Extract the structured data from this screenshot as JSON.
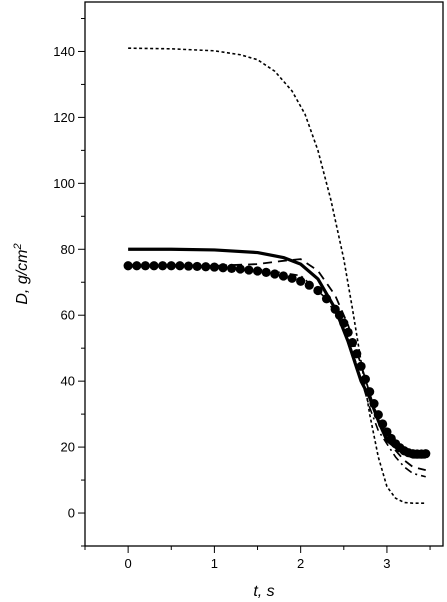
{
  "chart_data": {
    "type": "line",
    "title": "",
    "xlabel": "t, s",
    "ylabel_parts": {
      "main": "D, g/cm",
      "sup": "2"
    },
    "xlim": [
      -0.5,
      3.65
    ],
    "ylim": [
      -10,
      155
    ],
    "x_major_ticks": [
      0,
      1,
      2,
      3
    ],
    "y_major_ticks": [
      0,
      20,
      40,
      60,
      80,
      100,
      120,
      140
    ],
    "x_minor_step": 0.5,
    "y_minor_step": 10,
    "grid": false,
    "legend": "none",
    "series": [
      {
        "style": "dotted-thin",
        "color": "#000000",
        "x": [
          0,
          0.5,
          1.0,
          1.3,
          1.5,
          1.7,
          1.9,
          2.05,
          2.2,
          2.35,
          2.5,
          2.6,
          2.7,
          2.8,
          2.9,
          3.0,
          3.1,
          3.2,
          3.3,
          3.45
        ],
        "y": [
          141,
          140.8,
          140.2,
          139,
          137.5,
          134,
          128,
          121,
          110,
          95,
          77,
          62,
          46,
          30,
          17,
          8,
          4.5,
          3.2,
          3,
          3
        ]
      },
      {
        "style": "solid-thick",
        "color": "#000000",
        "x": [
          0,
          0.5,
          1.0,
          1.5,
          1.8,
          2.0,
          2.2,
          2.4,
          2.55,
          2.65,
          2.7,
          2.8,
          2.9,
          3.0,
          3.1,
          3.2,
          3.3,
          3.45
        ],
        "y": [
          80,
          80,
          79.8,
          79,
          77.5,
          75.5,
          71,
          62,
          52,
          44,
          40,
          35,
          28,
          22,
          20,
          18,
          17,
          17
        ]
      },
      {
        "style": "dashed",
        "color": "#000000",
        "x": [
          0,
          0.5,
          1.0,
          1.5,
          1.8,
          2.0,
          2.2,
          2.4,
          2.55,
          2.7,
          2.85,
          3.0,
          3.1,
          3.2,
          3.3,
          3.45
        ],
        "y": [
          75,
          75,
          75,
          75.5,
          76.5,
          77,
          73.5,
          66,
          57,
          45,
          32,
          23,
          19,
          16,
          14,
          13
        ]
      },
      {
        "style": "dash-dot",
        "color": "#000000",
        "x": [
          0,
          0.5,
          1.0,
          1.5,
          2.0,
          2.3,
          2.5,
          2.65,
          2.8,
          2.9,
          3.0,
          3.1,
          3.2,
          3.3,
          3.45
        ],
        "y": [
          75,
          75,
          74.5,
          74,
          72,
          65,
          56,
          45,
          32,
          25,
          21,
          17,
          14,
          12,
          11
        ]
      },
      {
        "style": "markers",
        "color": "#000000",
        "x": [
          0.0,
          0.1,
          0.2,
          0.3,
          0.4,
          0.5,
          0.6,
          0.7,
          0.8,
          0.9,
          1.0,
          1.1,
          1.2,
          1.3,
          1.4,
          1.5,
          1.6,
          1.7,
          1.8,
          1.9,
          2.0,
          2.1,
          2.2,
          2.3,
          2.4,
          2.45,
          2.5,
          2.55,
          2.6,
          2.65,
          2.7,
          2.75,
          2.8,
          2.85,
          2.9,
          2.95,
          3.0,
          3.05,
          3.1,
          3.15,
          3.2,
          3.25,
          3.3,
          3.35,
          3.4,
          3.45
        ],
        "y": [
          75,
          75,
          75,
          75,
          75,
          75,
          75,
          74.9,
          74.8,
          74.7,
          74.6,
          74.4,
          74.2,
          74,
          73.7,
          73.4,
          73,
          72.5,
          71.9,
          71.2,
          70.3,
          69.1,
          67.5,
          65,
          61.8,
          60,
          57.6,
          54.8,
          51.7,
          48.3,
          44.5,
          40.6,
          36.8,
          33.2,
          29.8,
          27,
          24.6,
          22.6,
          21,
          19.8,
          18.9,
          18.3,
          18,
          17.9,
          17.9,
          18
        ]
      }
    ]
  }
}
